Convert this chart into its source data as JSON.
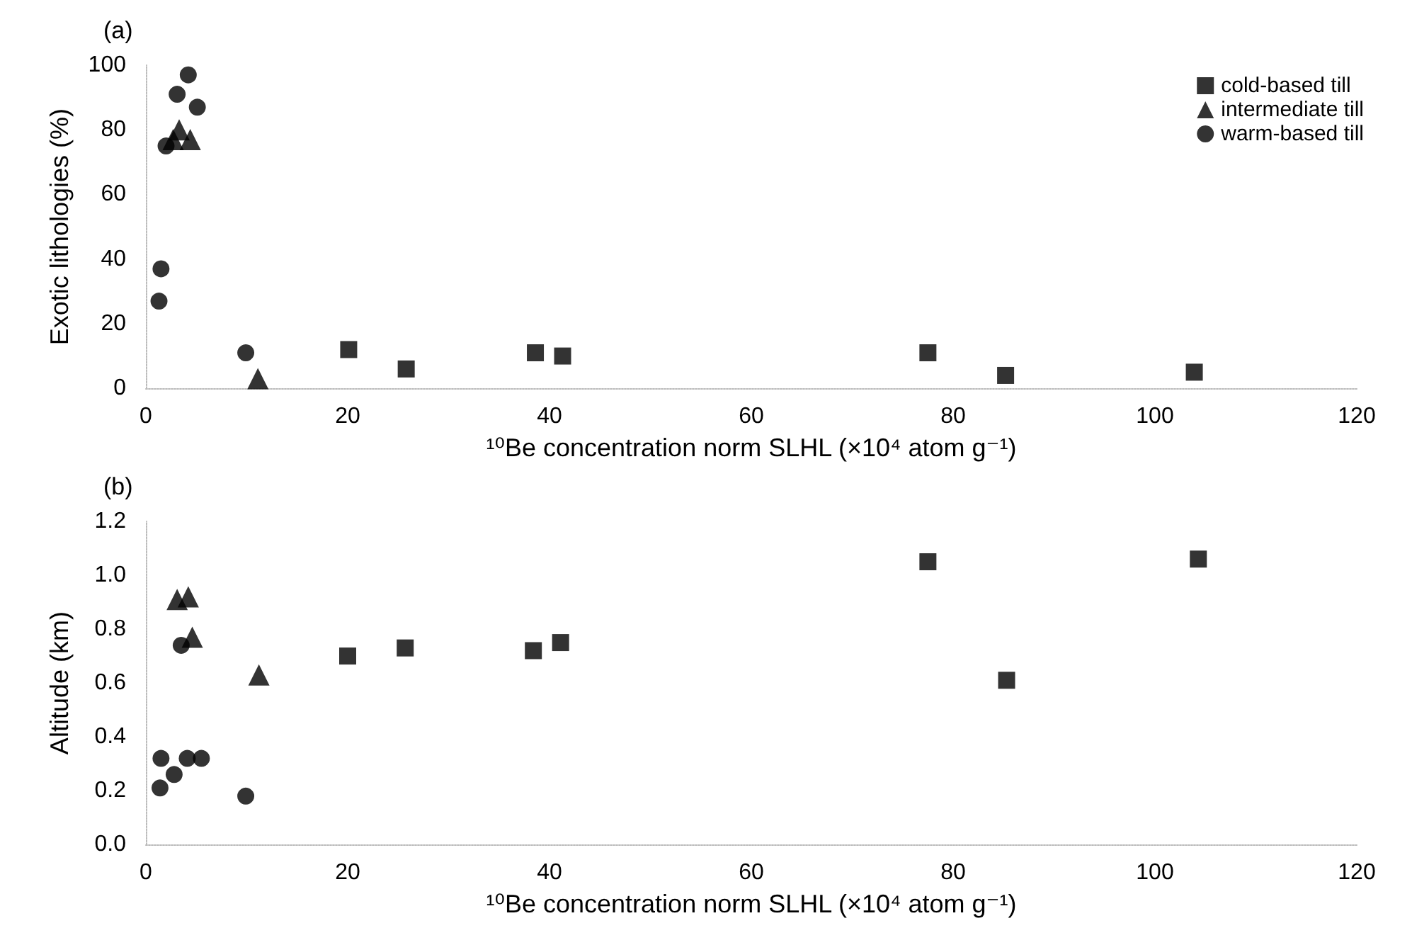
{
  "chart_data": [
    {
      "type": "scatter",
      "title": "(a)",
      "xlabel": "¹⁰Be concentration norm SLHL (×10⁴ atom g⁻¹)",
      "ylabel": "Exotic lithologies (%)",
      "xlim": [
        0,
        120
      ],
      "xticks": [
        0,
        20,
        40,
        60,
        80,
        100,
        120
      ],
      "ylim": [
        0,
        100
      ],
      "yticks": [
        0,
        20,
        40,
        60,
        80,
        100
      ],
      "grid": false,
      "legend": "top right",
      "series": [
        {
          "name": "cold-based till",
          "color": "#000000",
          "marker": "square",
          "x": [
            20.1,
            25.8,
            38.6,
            41.3,
            77.5,
            85.2,
            103.9
          ],
          "values": [
            12,
            6,
            11,
            10,
            11,
            4,
            5
          ]
        },
        {
          "name": "intermediate till",
          "color": "#000000",
          "marker": "triangle",
          "x": [
            2.7,
            3.3,
            4.4,
            11.1
          ],
          "values": [
            77,
            80,
            77,
            3
          ]
        },
        {
          "name": "warm-based till",
          "color": "#000000",
          "marker": "circle",
          "x": [
            1.3,
            1.5,
            2,
            3.1,
            4.2,
            5.1,
            9.9
          ],
          "values": [
            27,
            37,
            75,
            91,
            97,
            87,
            11
          ]
        }
      ]
    },
    {
      "type": "scatter",
      "title": "(b)",
      "xlabel": "¹⁰Be concentration norm SLHL (×10⁴ atom g⁻¹)",
      "ylabel": "Altitude (km)",
      "xlim": [
        0,
        120
      ],
      "xticks": [
        0,
        20,
        40,
        60,
        80,
        100,
        120
      ],
      "ylim": [
        0,
        1.2
      ],
      "yticks": [
        {
          "value": 0,
          "label": "0.0"
        },
        {
          "value": 0.2,
          "label": "0.2"
        },
        {
          "value": 0.4,
          "label": "0.4"
        },
        {
          "value": 0.6,
          "label": "0.6"
        },
        {
          "value": 0.8,
          "label": "0.8"
        },
        {
          "value": 1,
          "label": "1.0"
        },
        {
          "value": 1.2,
          "label": "1.2"
        }
      ],
      "grid": false,
      "legend": false,
      "series": [
        {
          "color": "#000000",
          "marker": "square",
          "x": [
            20,
            25.7,
            38.4,
            41.1,
            77.5,
            85.3,
            104.3
          ],
          "values": [
            0.7,
            0.73,
            0.72,
            0.75,
            1.05,
            0.61,
            1.06
          ]
        },
        {
          "color": "#000000",
          "marker": "triangle",
          "x": [
            3.1,
            4.2,
            4.6,
            11.2
          ],
          "values": [
            0.91,
            0.92,
            0.77,
            0.63
          ]
        },
        {
          "color": "#000000",
          "marker": "circle",
          "x": [
            1.4,
            1.5,
            2.8,
            4.1,
            5.5,
            9.9,
            3.5
          ],
          "values": [
            0.21,
            0.32,
            0.26,
            0.32,
            0.32,
            0.18,
            0.74
          ]
        }
      ]
    }
  ]
}
